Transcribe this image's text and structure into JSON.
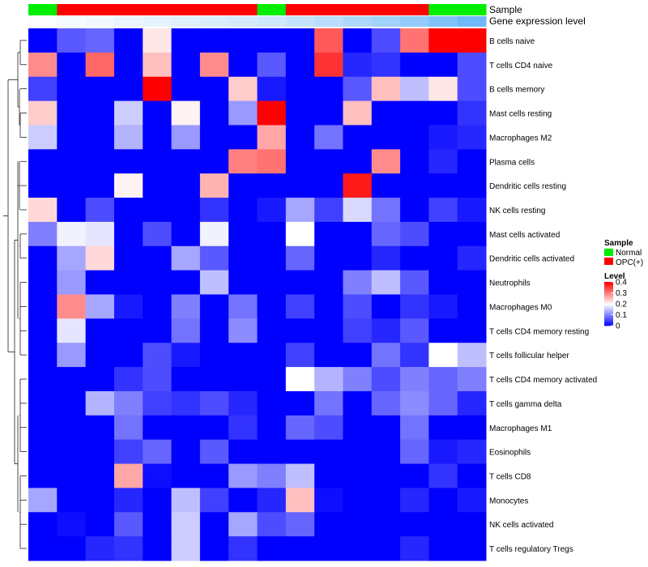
{
  "chart_data": {
    "type": "heatmap",
    "annotation_tracks": [
      "Sample",
      "Gene expression level"
    ],
    "sample_groups": [
      "Normal",
      "OPC",
      "OPC",
      "OPC",
      "OPC",
      "OPC",
      "OPC",
      "OPC",
      "Normal",
      "OPC",
      "OPC",
      "OPC",
      "OPC",
      "OPC",
      "Normal",
      "Normal"
    ],
    "expression_track": [
      0.02,
      0.05,
      0.08,
      0.11,
      0.14,
      0.17,
      0.2,
      0.23,
      0.27,
      0.32,
      0.38,
      0.45,
      0.52,
      0.6,
      0.7,
      0.8
    ],
    "rows": [
      "B cells naive",
      "T cells CD4 naive",
      "B cells memory",
      "Mast cells resting",
      "Macrophages M2",
      "Plasma cells",
      "Dendritic cells resting",
      "NK cells resting",
      "Mast cells activated",
      "Dendritic cells activated",
      "Neutrophils",
      "Macrophages M0",
      "T cells CD4 memory resting",
      "T cells follicular helper",
      "T cells CD4 memory activated",
      "T cells gamma delta",
      "Macrophages M1",
      "Eosinophils",
      "T cells CD8",
      "Monocytes",
      "NK cells activated",
      "T cells regulatory  Tregs"
    ],
    "values": [
      [
        0.0,
        0.07,
        0.08,
        0.0,
        0.22,
        0.0,
        0.0,
        0.0,
        0.0,
        0.0,
        0.33,
        0.0,
        0.06,
        0.31,
        0.4,
        0.4
      ],
      [
        0.29,
        0.0,
        0.32,
        0.0,
        0.25,
        0.0,
        0.29,
        0.0,
        0.07,
        0.0,
        0.36,
        0.03,
        0.04,
        0.0,
        0.0,
        0.06
      ],
      [
        0.05,
        0.0,
        0.0,
        0.0,
        0.4,
        0.0,
        0.0,
        0.24,
        0.02,
        0.0,
        0.0,
        0.07,
        0.25,
        0.15,
        0.22,
        0.06
      ],
      [
        0.24,
        0.0,
        0.0,
        0.16,
        0.0,
        0.21,
        0.0,
        0.12,
        0.4,
        0.0,
        0.0,
        0.25,
        0.0,
        0.0,
        0.0,
        0.04
      ],
      [
        0.16,
        0.0,
        0.0,
        0.14,
        0.0,
        0.12,
        0.0,
        0.0,
        0.27,
        0.0,
        0.09,
        0.0,
        0.0,
        0.0,
        0.02,
        0.03
      ],
      [
        0.0,
        0.0,
        0.0,
        0.0,
        0.0,
        0.0,
        0.0,
        0.3,
        0.31,
        0.0,
        0.0,
        0.0,
        0.29,
        0.0,
        0.03,
        0.0
      ],
      [
        0.0,
        0.0,
        0.0,
        0.21,
        0.0,
        0.0,
        0.26,
        0.0,
        0.0,
        0.0,
        0.0,
        0.38,
        0.0,
        0.0,
        0.0,
        0.0
      ],
      [
        0.23,
        0.0,
        0.06,
        0.0,
        0.0,
        0.0,
        0.04,
        0.0,
        0.02,
        0.13,
        0.05,
        0.17,
        0.09,
        0.0,
        0.05,
        0.02
      ],
      [
        0.1,
        0.19,
        0.18,
        0.0,
        0.06,
        0.0,
        0.19,
        0.0,
        0.0,
        0.2,
        0.0,
        0.0,
        0.08,
        0.06,
        0.0,
        0.0
      ],
      [
        0.0,
        0.13,
        0.23,
        0.0,
        0.0,
        0.13,
        0.07,
        0.0,
        0.0,
        0.08,
        0.0,
        0.0,
        0.03,
        0.0,
        0.0,
        0.03
      ],
      [
        0.0,
        0.12,
        0.0,
        0.0,
        0.0,
        0.0,
        0.15,
        0.0,
        0.0,
        0.0,
        0.0,
        0.1,
        0.15,
        0.07,
        0.0,
        0.0
      ],
      [
        0.0,
        0.29,
        0.13,
        0.02,
        0.0,
        0.1,
        0.0,
        0.09,
        0.0,
        0.05,
        0.0,
        0.06,
        0.0,
        0.04,
        0.02,
        0.0
      ],
      [
        0.0,
        0.18,
        0.0,
        0.0,
        0.0,
        0.09,
        0.0,
        0.11,
        0.0,
        0.0,
        0.0,
        0.05,
        0.03,
        0.07,
        0.0,
        0.0
      ],
      [
        0.0,
        0.12,
        0.0,
        0.0,
        0.06,
        0.02,
        0.0,
        0.0,
        0.0,
        0.05,
        0.0,
        0.0,
        0.09,
        0.04,
        0.2,
        0.15
      ],
      [
        0.0,
        0.0,
        0.0,
        0.04,
        0.06,
        0.0,
        0.0,
        0.0,
        0.0,
        0.2,
        0.14,
        0.1,
        0.06,
        0.1,
        0.08,
        0.1
      ],
      [
        0.0,
        0.0,
        0.14,
        0.1,
        0.05,
        0.04,
        0.06,
        0.03,
        0.0,
        0.0,
        0.09,
        0.0,
        0.08,
        0.11,
        0.08,
        0.03
      ],
      [
        0.0,
        0.0,
        0.0,
        0.09,
        0.0,
        0.0,
        0.0,
        0.04,
        0.0,
        0.08,
        0.06,
        0.0,
        0.0,
        0.09,
        0.0,
        0.0
      ],
      [
        0.0,
        0.0,
        0.0,
        0.05,
        0.08,
        0.0,
        0.07,
        0.0,
        0.0,
        0.0,
        0.0,
        0.0,
        0.0,
        0.08,
        0.02,
        0.03
      ],
      [
        0.0,
        0.0,
        0.0,
        0.27,
        0.01,
        0.0,
        0.0,
        0.12,
        0.1,
        0.15,
        0.0,
        0.0,
        0.0,
        0.0,
        0.04,
        0.0
      ],
      [
        0.13,
        0.0,
        0.0,
        0.03,
        0.0,
        0.15,
        0.05,
        0.0,
        0.03,
        0.25,
        0.01,
        0.0,
        0.0,
        0.03,
        0.0,
        0.02
      ],
      [
        0.0,
        0.01,
        0.0,
        0.07,
        0.0,
        0.16,
        0.0,
        0.13,
        0.06,
        0.08,
        0.0,
        0.0,
        0.0,
        0.0,
        0.0,
        0.0
      ],
      [
        0.0,
        0.0,
        0.03,
        0.04,
        0.0,
        0.16,
        0.0,
        0.04,
        0.0,
        0.0,
        0.0,
        0.0,
        0.0,
        0.03,
        0.0,
        0.0
      ]
    ],
    "legend": {
      "sample_title": "Sample",
      "sample_entries": [
        {
          "name": "Normal",
          "color": "#00ee00"
        },
        {
          "name": "OPC(+)",
          "color": "#ff0000"
        }
      ],
      "level_title": "Level",
      "level_ticks": [
        "0.4",
        "0.3",
        "0.2",
        "0.1",
        "0"
      ],
      "level_values": [
        0.4,
        0.3,
        0.2,
        0.1,
        0
      ]
    },
    "color_scale": {
      "low": "#0000ff",
      "mid": "#ffffff",
      "high": "#ff0000",
      "min": 0,
      "mid_value": 0.2,
      "max": 0.4
    },
    "expression_scale": {
      "low": "#ffffff",
      "high": "#4aa8f5"
    },
    "group_colors": {
      "Normal": "#00ee00",
      "OPC": "#ff0000"
    }
  }
}
